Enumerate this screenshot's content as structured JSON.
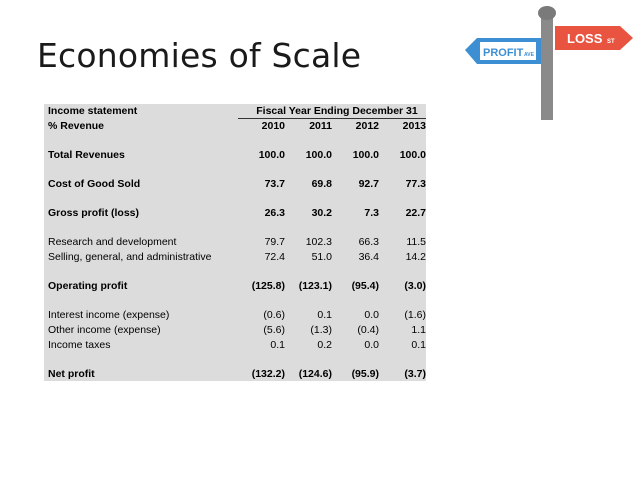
{
  "slide": {
    "title": "Economies of Scale"
  },
  "signpost": {
    "loss_label": "LOSS",
    "loss_suffix": "ST",
    "profit_label": "PROFIT",
    "profit_suffix": "AVE"
  },
  "table": {
    "header_label_1": "Income statement",
    "header_span": "Fiscal Year Ending December 31",
    "header_label_2": "% Revenue",
    "years": [
      "2010",
      "2011",
      "2012",
      "2013"
    ],
    "rows": [
      {
        "label": "Total Revenues",
        "values": [
          "100.0",
          "100.0",
          "100.0",
          "100.0"
        ]
      },
      {
        "label": "Cost of Good Sold",
        "values": [
          "73.7",
          "69.8",
          "92.7",
          "77.3"
        ]
      },
      {
        "label": "Gross profit (loss)",
        "values": [
          "26.3",
          "30.2",
          "7.3",
          "22.7"
        ]
      },
      {
        "label": "Research and development",
        "values": [
          "79.7",
          "102.3",
          "66.3",
          "11.5"
        ]
      },
      {
        "label": "Selling, general, and administrative",
        "values": [
          "72.4",
          "51.0",
          "36.4",
          "14.2"
        ]
      },
      {
        "label": "Operating profit",
        "values": [
          "(125.8)",
          "(123.1)",
          "(95.4)",
          "(3.0)"
        ]
      },
      {
        "label": "Interest income (expense)",
        "values": [
          "(0.6)",
          "0.1",
          "0.0",
          "(1.6)"
        ]
      },
      {
        "label": "Other income (expense)",
        "values": [
          "(5.6)",
          "(1.3)",
          "(0.4)",
          "1.1"
        ]
      },
      {
        "label": "Income taxes",
        "values": [
          "0.1",
          "0.2",
          "0.0",
          "0.1"
        ]
      },
      {
        "label": "Net profit",
        "values": [
          "(132.2)",
          "(124.6)",
          "(95.9)",
          "(3.7)"
        ]
      }
    ]
  }
}
